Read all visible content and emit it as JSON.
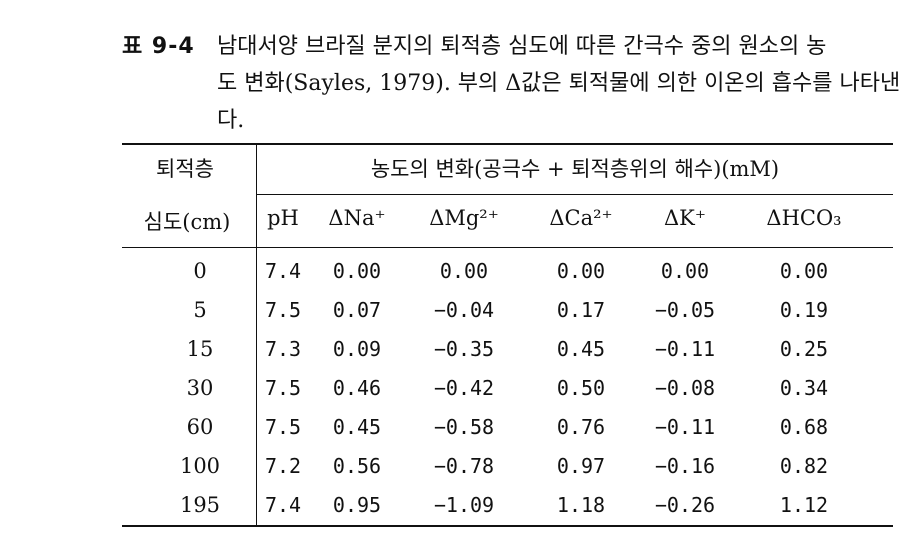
{
  "caption": {
    "label": "표 9-4",
    "line1": "남대서양 브라질 분지의 퇴적층 심도에 따른 간극수 중의 원소의 농",
    "line2": "도 변화(Sayles, 1979). 부의 Δ값은 퇴적물에 의한 이온의 흡수를 나타낸",
    "line3": "다."
  },
  "table": {
    "row_header_top": "퇴적층",
    "row_header_bottom": "심도(cm)",
    "group_header": "농도의 변화(공극수 + 퇴적층위의 해수)(mM)",
    "columns": [
      "pH",
      "ΔNa⁺",
      "ΔMg²⁺",
      "ΔCa²⁺",
      "ΔK⁺",
      "ΔHCO₃"
    ],
    "rows": [
      {
        "depth": "0",
        "ph": "7.4",
        "na": "0.00",
        "mg": "0.00",
        "ca": "0.00",
        "k": "0.00",
        "hco3": "0.00"
      },
      {
        "depth": "5",
        "ph": "7.5",
        "na": "0.07",
        "mg": "−0.04",
        "ca": "0.17",
        "k": "−0.05",
        "hco3": "0.19"
      },
      {
        "depth": "15",
        "ph": "7.3",
        "na": "0.09",
        "mg": "−0.35",
        "ca": "0.45",
        "k": "−0.11",
        "hco3": "0.25"
      },
      {
        "depth": "30",
        "ph": "7.5",
        "na": "0.46",
        "mg": "−0.42",
        "ca": "0.50",
        "k": "−0.08",
        "hco3": "0.34"
      },
      {
        "depth": "60",
        "ph": "7.5",
        "na": "0.45",
        "mg": "−0.58",
        "ca": "0.76",
        "k": "−0.11",
        "hco3": "0.68"
      },
      {
        "depth": "100",
        "ph": "7.2",
        "na": "0.56",
        "mg": "−0.78",
        "ca": "0.97",
        "k": "−0.16",
        "hco3": "0.82"
      },
      {
        "depth": "195",
        "ph": "7.4",
        "na": "0.95",
        "mg": "−1.09",
        "ca": "1.18",
        "k": "−0.26",
        "hco3": "1.12"
      }
    ]
  }
}
